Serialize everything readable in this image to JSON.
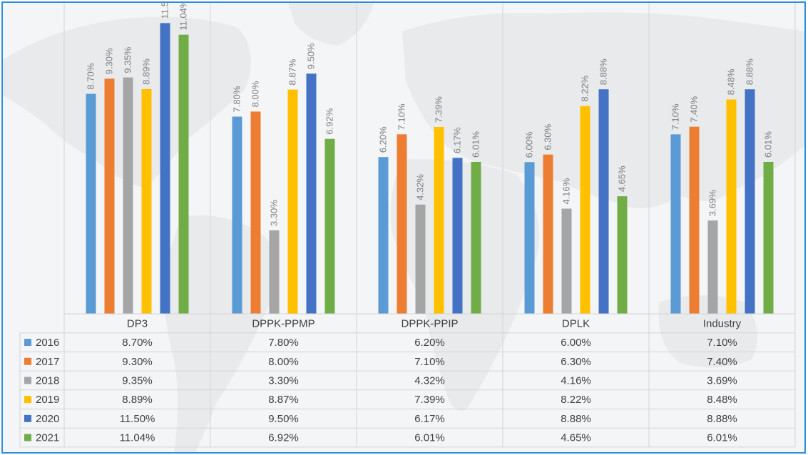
{
  "chart_data": {
    "type": "bar",
    "categories": [
      "DP3",
      "DPPK-PPMP",
      "DPPK-PPIP",
      "DPLK",
      "Industry"
    ],
    "ylim": [
      0,
      12.3
    ],
    "grid": false,
    "legend_placement": "data-table-left",
    "series": [
      {
        "name": "2016",
        "color": "#5b9bd5",
        "values": [
          8.7,
          7.8,
          6.2,
          6.0,
          7.1
        ],
        "labels": [
          "8.70%",
          "7.80%",
          "6.20%",
          "6.00%",
          "7.10%"
        ]
      },
      {
        "name": "2017",
        "color": "#ed7d31",
        "values": [
          9.3,
          8.0,
          7.1,
          6.3,
          7.4
        ],
        "labels": [
          "9.30%",
          "8.00%",
          "7.10%",
          "6.30%",
          "7.40%"
        ]
      },
      {
        "name": "2018",
        "color": "#a5a5a5",
        "values": [
          9.35,
          3.3,
          4.32,
          4.16,
          3.69
        ],
        "labels": [
          "9.35%",
          "3.30%",
          "4.32%",
          "4.16%",
          "3.69%"
        ]
      },
      {
        "name": "2019",
        "color": "#ffc000",
        "values": [
          8.89,
          8.87,
          7.39,
          8.22,
          8.48
        ],
        "labels": [
          "8.89%",
          "8.87%",
          "7.39%",
          "8.22%",
          "8.48%"
        ]
      },
      {
        "name": "2020",
        "color": "#4472c4",
        "values": [
          11.5,
          9.5,
          6.17,
          8.88,
          8.88
        ],
        "labels": [
          "11.50%",
          "9.50%",
          "6.17%",
          "8.88%",
          "8.88%"
        ]
      },
      {
        "name": "2021",
        "color": "#70ad47",
        "values": [
          11.04,
          6.92,
          6.01,
          4.65,
          6.01
        ],
        "labels": [
          "11.04%",
          "6.92%",
          "6.01%",
          "4.65%",
          "6.01%"
        ]
      }
    ]
  },
  "colors": {
    "frame_border": "#2f8fe0",
    "background": "#f4f5f7",
    "map_land": "#e9eaec",
    "grid_line": "#d4d4d4",
    "label_text": "#7f7f7f",
    "table_text": "#404040"
  }
}
